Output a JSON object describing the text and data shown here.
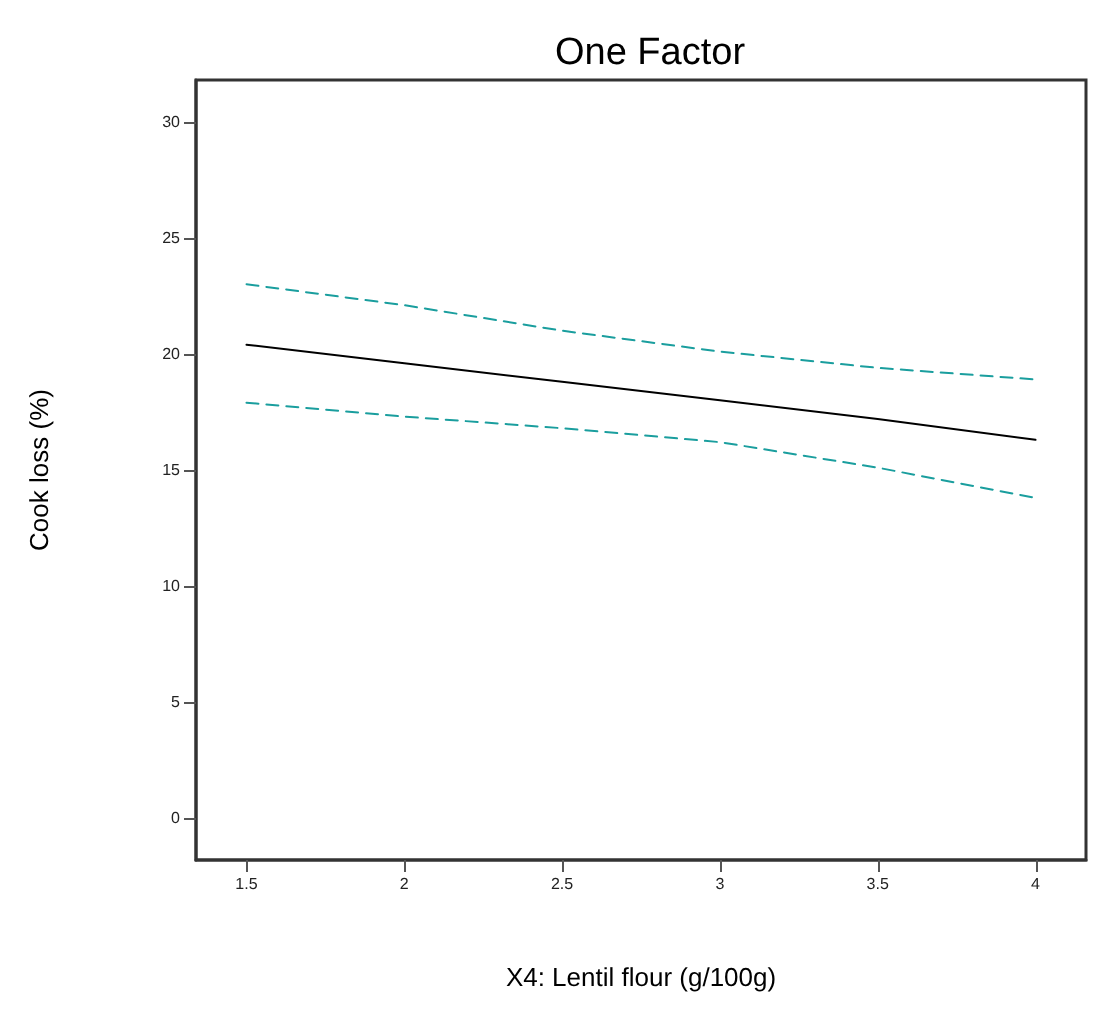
{
  "chart_data": {
    "type": "line",
    "title": "One Factor",
    "xlabel": "X4: Lentil flour (g/100g)",
    "ylabel": "Cook loss (%)",
    "x": [
      1.5,
      2,
      2.5,
      3,
      3.5,
      4
    ],
    "series": [
      {
        "color": "#000000",
        "line_style": "solid",
        "values": [
          20.4,
          19.6,
          18.8,
          18.0,
          17.2,
          16.3
        ]
      },
      {
        "color": "#1a9e9e",
        "line_style": "dashed",
        "values": [
          23.0,
          22.1,
          21.0,
          20.1,
          19.4,
          18.9
        ]
      },
      {
        "color": "#1a9e9e",
        "line_style": "dashed",
        "values": [
          17.9,
          17.3,
          16.8,
          16.2,
          15.1,
          13.8
        ]
      }
    ],
    "xlim": [
      1.34,
      4.16
    ],
    "xticks": [
      1.5,
      2,
      2.5,
      3,
      3.5,
      4
    ],
    "ylim": [
      -1.8,
      31.8
    ],
    "yticks": [
      0,
      5,
      10,
      15,
      20,
      25,
      30
    ],
    "grid": false,
    "marker": "none"
  }
}
